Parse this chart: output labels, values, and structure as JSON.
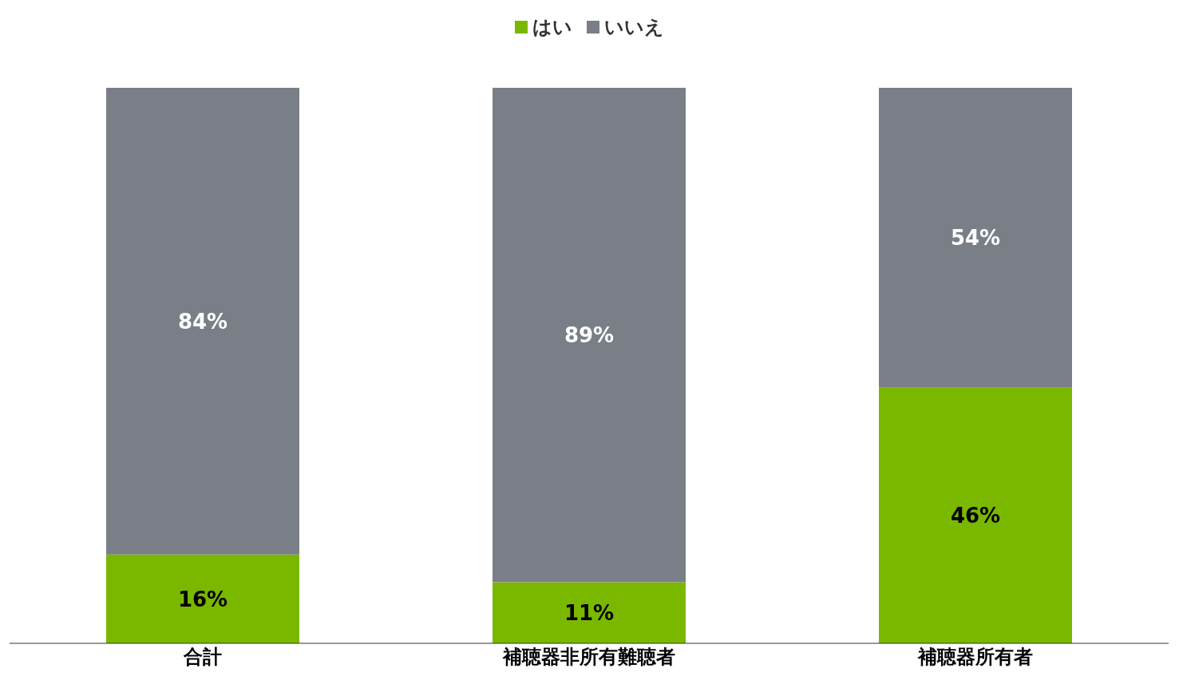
{
  "chart_data": {
    "type": "bar",
    "stacked": true,
    "categories": [
      "合計",
      "補聴器非所有難聴者",
      "補聴器所有者"
    ],
    "series": [
      {
        "name": "はい",
        "color": "#7ab800",
        "values": [
          16,
          11,
          46
        ],
        "value_labels": [
          "16%",
          "11%",
          "46%"
        ]
      },
      {
        "name": "いいえ",
        "color": "#7a7f87",
        "values": [
          84,
          89,
          54
        ],
        "value_labels": [
          "84%",
          "89%",
          "54%"
        ]
      }
    ],
    "tick_labels": "x",
    "legend": "top"
  }
}
